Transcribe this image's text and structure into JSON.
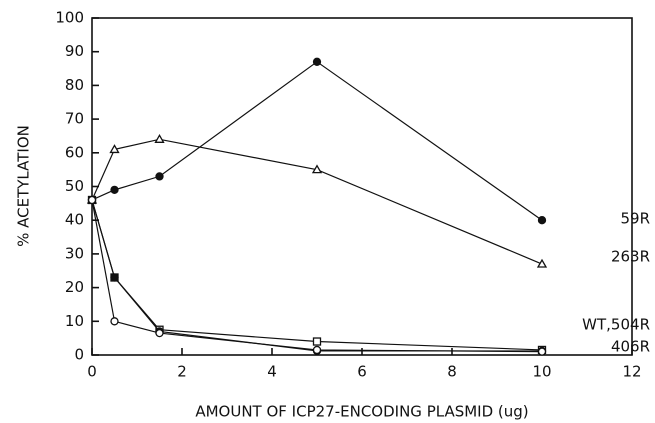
{
  "chart_data": {
    "type": "line",
    "xlabel": "AMOUNT OF ICP27-ENCODING PLASMID (ug)",
    "ylabel": "% ACETYLATION",
    "x": [
      0,
      0.5,
      1.5,
      5,
      10
    ],
    "series": [
      {
        "name": "59R",
        "color": "#111111",
        "marker": "filled-circle",
        "values": [
          46,
          49,
          53,
          87,
          40
        ]
      },
      {
        "name": "263R",
        "color": "#111111",
        "marker": "open-triangle",
        "values": [
          46,
          61,
          64,
          55,
          27
        ]
      },
      {
        "name": "WT,504R",
        "color": "#111111",
        "marker": "open-square",
        "values": [
          46,
          23,
          7.5,
          4,
          1.5
        ]
      },
      {
        "color": "#111111",
        "marker": "filled-circle",
        "values": [
          46,
          23,
          7,
          1.2,
          1.2
        ]
      },
      {
        "name": "406R",
        "color": "#111111",
        "marker": "open-circle",
        "values": [
          46,
          10,
          6.5,
          1.5,
          1
        ]
      }
    ],
    "xlim": [
      0,
      12
    ],
    "xticks": [
      0,
      2,
      4,
      6,
      8,
      10,
      12
    ],
    "ylim": [
      0,
      100
    ],
    "yticks": [
      0,
      10,
      20,
      30,
      40,
      50,
      60,
      70,
      80,
      90,
      100
    ]
  }
}
